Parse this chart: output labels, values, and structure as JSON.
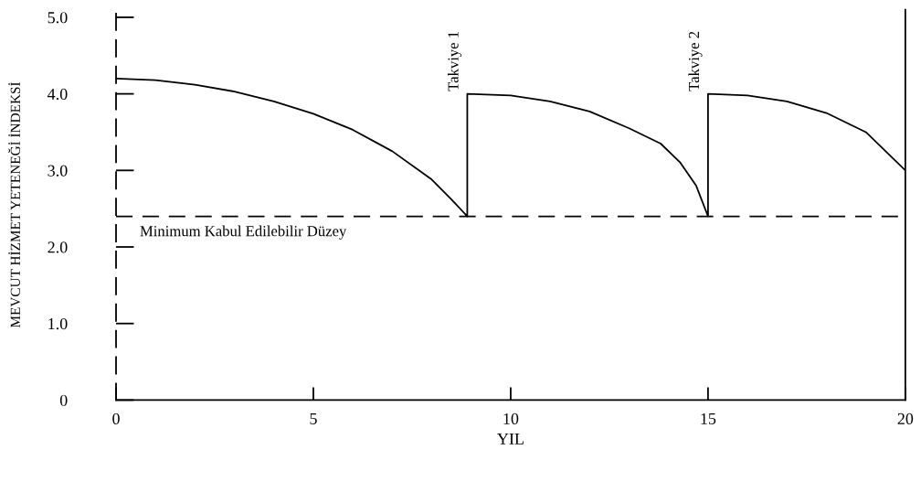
{
  "chart_data": {
    "type": "line",
    "xlabel": "YIL",
    "ylabel": "MEVCUT HİZMET YETENEĞİ İNDEKSİ",
    "series": [
      {
        "color": "#000000",
        "x": [
          0,
          1,
          2,
          3,
          4,
          5,
          6,
          7,
          8,
          8.5,
          8.9,
          8.9,
          10,
          11,
          12,
          13,
          13.8,
          14.3,
          14.7,
          15,
          15,
          16,
          17,
          18,
          19,
          20
        ],
        "values": [
          4.2,
          4.18,
          4.12,
          4.03,
          3.9,
          3.74,
          3.53,
          3.25,
          2.88,
          2.62,
          2.4,
          4.0,
          3.98,
          3.9,
          3.77,
          3.55,
          3.35,
          3.1,
          2.8,
          2.4,
          4.0,
          3.98,
          3.9,
          3.75,
          3.5,
          3.0
        ]
      }
    ],
    "xlim": [
      0,
      20
    ],
    "ylim": [
      0,
      5.1
    ],
    "xticks": [
      0,
      5,
      10,
      15,
      20
    ],
    "yticks": [
      0,
      {
        "value": 1,
        "label": "1.0"
      },
      {
        "value": 2,
        "label": "2.0"
      },
      {
        "value": 3,
        "label": "3.0"
      },
      {
        "value": 4,
        "label": "4.0"
      },
      {
        "value": 5,
        "label": "5.0"
      }
    ],
    "ref_lines": [
      {
        "axis": "y",
        "value": 2.4,
        "label": "Minimum Kabul Edilebilir Düzey",
        "color": "#000000",
        "line_style": "dashed"
      }
    ],
    "annotations": [
      {
        "text": "Takviye 1",
        "x": 8.9,
        "y": 4.0
      },
      {
        "text": "Takviye 2",
        "x": 15,
        "y": 4.0
      }
    ],
    "grid": false,
    "legend": false,
    "marker": "none",
    "line_style": "solid"
  }
}
